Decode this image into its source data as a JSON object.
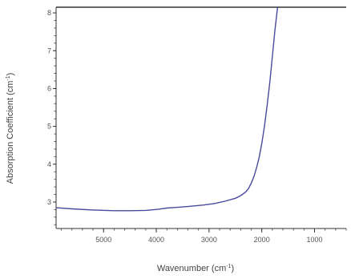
{
  "chart_data": {
    "type": "line",
    "xlabel_main": "Wavenumber (cm",
    "xlabel_sup": "-1",
    "xlabel_tail": ")",
    "ylabel_main": "Absorption Coefficient (cm",
    "ylabel_sup": "-1",
    "ylabel_tail": ")",
    "x_reversed": true,
    "xlim": [
      5900,
      400
    ],
    "ylim": [
      2.3,
      8.15
    ],
    "x_ticks": [
      5000,
      4000,
      3000,
      2000,
      1000
    ],
    "x_tick_labels": [
      "5000",
      "4000",
      "3000",
      "2000",
      "1000"
    ],
    "y_ticks": [
      3,
      4,
      5,
      6,
      7,
      8
    ],
    "y_tick_labels": [
      "3",
      "4",
      "5",
      "6",
      "7",
      "8"
    ],
    "grid": false,
    "line_color": "#4a4a9c",
    "series": [
      {
        "x": [
          5950,
          5600,
          5200,
          4800,
          4500,
          4200,
          3950,
          3800,
          3600,
          3400,
          3100,
          2900,
          2700,
          2500,
          2400,
          2300,
          2250,
          2200,
          2150,
          2100,
          2050,
          2000,
          1950,
          1900,
          1850,
          1800,
          1750,
          1700
        ],
        "y": [
          2.85,
          2.82,
          2.79,
          2.77,
          2.77,
          2.78,
          2.81,
          2.84,
          2.86,
          2.88,
          2.92,
          2.96,
          3.02,
          3.1,
          3.17,
          3.27,
          3.36,
          3.5,
          3.67,
          3.9,
          4.18,
          4.55,
          5.0,
          5.55,
          6.15,
          6.85,
          7.55,
          8.15
        ]
      }
    ]
  }
}
